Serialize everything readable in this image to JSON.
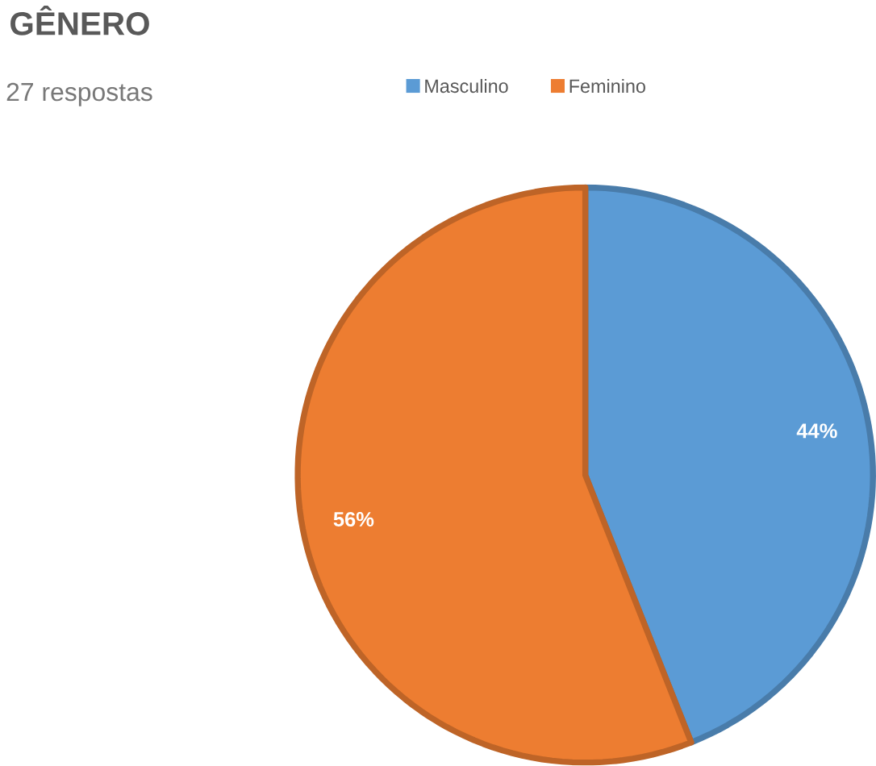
{
  "chart_data": {
    "type": "pie",
    "title": "GÊNERO",
    "subtitle": "27 respostas",
    "categories": [
      "Masculino",
      "Feminino"
    ],
    "values": [
      44,
      56
    ],
    "colors": [
      "#5b9bd5",
      "#ed7d31"
    ],
    "value_labels": [
      "44%",
      "56%"
    ],
    "legend": "top"
  }
}
